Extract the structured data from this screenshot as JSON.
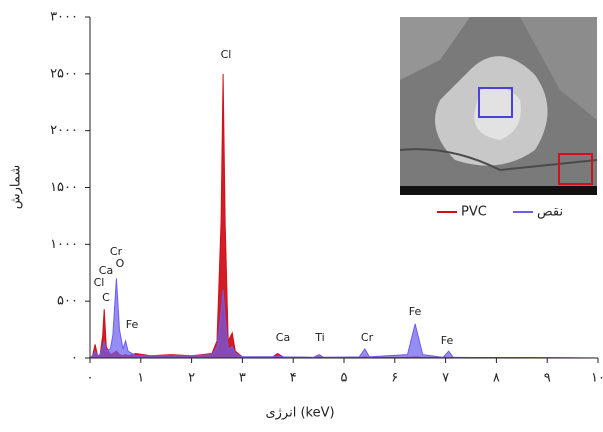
{
  "chart_data": {
    "type": "area",
    "xlabel": "انرژی (keV)",
    "ylabel": "شمارش",
    "x": [
      0,
      0.05,
      0.1,
      0.15,
      0.2,
      0.25,
      0.28,
      0.32,
      0.4,
      0.45,
      0.52,
      0.58,
      0.65,
      0.7,
      0.75,
      0.9,
      1.2,
      1.6,
      2.0,
      2.4,
      2.5,
      2.58,
      2.62,
      2.66,
      2.72,
      2.8,
      2.86,
      3.0,
      3.6,
      3.69,
      3.8,
      4.4,
      4.51,
      4.6,
      5.3,
      5.41,
      5.5,
      6.25,
      6.4,
      6.55,
      6.95,
      7.06,
      7.15,
      8,
      9,
      10
    ],
    "series": [
      {
        "name": "PVC",
        "color": "#d0101a",
        "values": [
          0,
          20,
          120,
          20,
          30,
          200,
          430,
          100,
          30,
          40,
          60,
          30,
          20,
          30,
          20,
          40,
          20,
          30,
          20,
          40,
          150,
          1200,
          2500,
          1200,
          150,
          220,
          60,
          10,
          10,
          40,
          10,
          5,
          10,
          5,
          5,
          10,
          5,
          5,
          10,
          5,
          5,
          5,
          5,
          3,
          2,
          0
        ]
      },
      {
        "name": "نقص",
        "color": "#6a5cf0",
        "values": [
          0,
          10,
          60,
          20,
          30,
          100,
          150,
          60,
          80,
          200,
          700,
          250,
          80,
          150,
          60,
          20,
          20,
          20,
          20,
          30,
          100,
          400,
          600,
          350,
          80,
          100,
          40,
          10,
          10,
          20,
          10,
          5,
          30,
          5,
          10,
          80,
          10,
          30,
          300,
          30,
          5,
          60,
          5,
          3,
          2,
          0
        ]
      }
    ],
    "xlim": [
      0,
      10
    ],
    "xticks": [
      {
        "value": 0,
        "label": "۰"
      },
      {
        "value": 1,
        "label": "۱"
      },
      {
        "value": 2,
        "label": "۲"
      },
      {
        "value": 3,
        "label": "۳"
      },
      {
        "value": 4,
        "label": "۴"
      },
      {
        "value": 5,
        "label": "۵"
      },
      {
        "value": 6,
        "label": "۶"
      },
      {
        "value": 7,
        "label": "۷"
      },
      {
        "value": 8,
        "label": "۸"
      },
      {
        "value": 9,
        "label": "۹"
      },
      {
        "value": 10,
        "label": "۱۰"
      }
    ],
    "ylim": [
      0,
      3000
    ],
    "yticks": [
      {
        "value": 0,
        "label": "۰"
      },
      {
        "value": 500,
        "label": "۵۰۰"
      },
      {
        "value": 1000,
        "label": "۱۰۰۰"
      },
      {
        "value": 1500,
        "label": "۱۵۰۰"
      },
      {
        "value": 2000,
        "label": "۲۰۰۰"
      },
      {
        "value": 2500,
        "label": "۲۵۰۰"
      },
      {
        "value": 3000,
        "label": "۳۰۰۰"
      }
    ],
    "annotations": [
      "Cl",
      "Cr",
      "Ca",
      "O",
      "Cl",
      "C",
      "Fe",
      "Ca",
      "Ti",
      "Cr",
      "Fe",
      "Fe"
    ]
  }
}
